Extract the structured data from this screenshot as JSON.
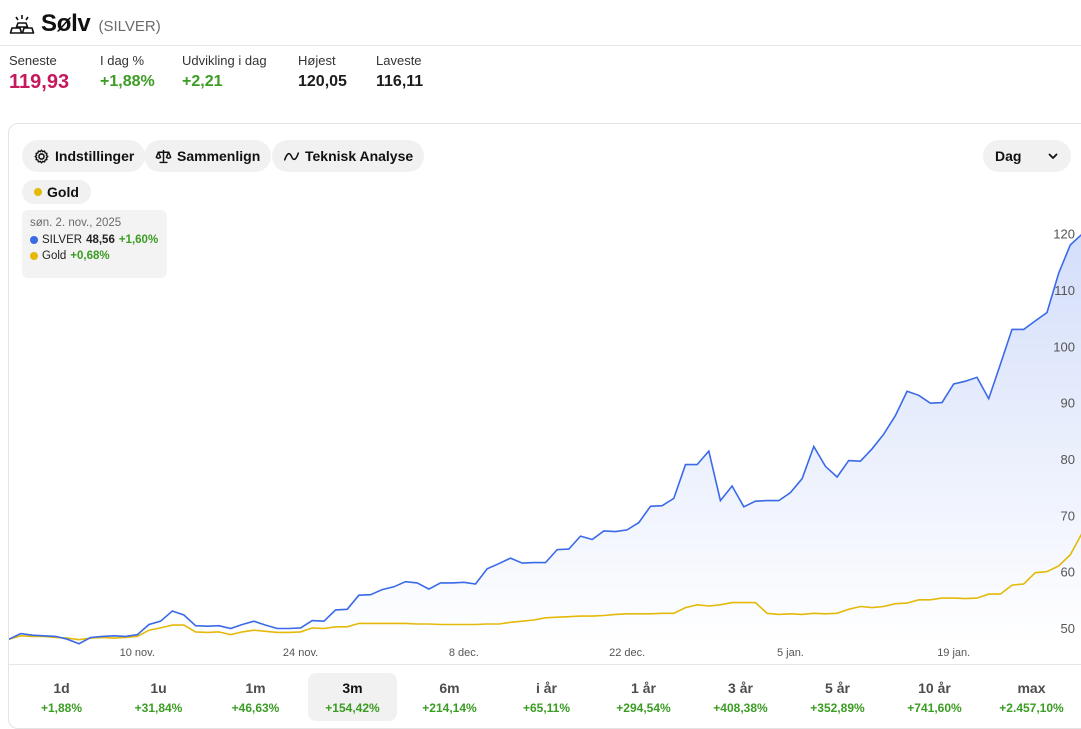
{
  "header": {
    "title": "Sølv",
    "ticker": "(SILVER)",
    "logo_icon": "gold-bars-icon"
  },
  "stats": [
    {
      "label": "Seneste",
      "value": "119,93",
      "style": "big"
    },
    {
      "label": "I dag %",
      "value": "+1,88%",
      "style": "pos"
    },
    {
      "label": "Udvikling i dag",
      "value": "+2,21",
      "style": "pos"
    },
    {
      "label": "Højest",
      "value": "120,05",
      "style": ""
    },
    {
      "label": "Laveste",
      "value": "116,11",
      "style": ""
    }
  ],
  "toolbar": {
    "settings_label": "Indstillinger",
    "compare_label": "Sammenlign",
    "technical_label": "Teknisk Analyse",
    "interval_value": "Dag",
    "compare_chip_label": "Gold"
  },
  "tooltip": {
    "date": "søn. 2. nov., 2025",
    "series": [
      {
        "name": "SILVER",
        "value": "48,56",
        "change": "+1,60%",
        "color": "#3a6ae8"
      },
      {
        "name": "Gold",
        "value": "",
        "change": "+0,68%",
        "color": "#e4b909"
      }
    ]
  },
  "chart_data": {
    "type": "line",
    "x_labels": [
      "10 nov.",
      "24 nov.",
      "8 dec.",
      "22 dec.",
      "5 jan.",
      "19 jan."
    ],
    "x_label_index": [
      11,
      25,
      39,
      53,
      67,
      81
    ],
    "ylim": [
      47.5,
      121
    ],
    "y_ticks": [
      50,
      60,
      70,
      80,
      90,
      100,
      110,
      120
    ],
    "grid": false,
    "colors": {
      "silver": "#3a6ae8",
      "gold": "#e4b909"
    },
    "series": [
      {
        "name": "SILVER",
        "values": [
          48.0,
          49.0,
          48.7,
          48.6,
          48.5,
          48.0,
          47.2,
          48.3,
          48.5,
          48.6,
          48.5,
          48.8,
          50.6,
          51.2,
          53.0,
          52.3,
          50.4,
          50.3,
          50.4,
          49.9,
          50.6,
          51.2,
          50.5,
          49.9,
          49.9,
          50.0,
          51.3,
          51.2,
          53.2,
          53.3,
          55.8,
          55.9,
          56.8,
          57.3,
          58.2,
          58.0,
          56.9,
          58.0,
          58.0,
          58.1,
          57.8,
          60.5,
          61.4,
          62.4,
          61.5,
          61.6,
          61.6,
          63.9,
          64.0,
          66.3,
          65.7,
          67.2,
          67.1,
          67.4,
          68.7,
          71.6,
          71.7,
          73.0,
          79.0,
          79.0,
          81.4,
          72.6,
          75.2,
          71.5,
          72.5,
          72.6,
          72.6,
          74.0,
          76.5,
          82.2,
          78.7,
          76.8,
          79.7,
          79.6,
          81.8,
          84.4,
          87.7,
          92.0,
          91.3,
          89.9,
          90.0,
          93.3,
          93.8,
          94.5,
          90.7,
          96.8,
          103.0,
          103.0,
          104.5,
          106.0,
          113.0,
          118.0,
          119.9
        ]
      },
      {
        "name": "Gold",
        "values": [
          48.0,
          48.6,
          48.5,
          48.5,
          48.3,
          48.2,
          47.9,
          48.2,
          48.3,
          48.2,
          48.3,
          48.5,
          49.6,
          50.0,
          50.5,
          50.5,
          49.3,
          49.2,
          49.3,
          48.8,
          49.3,
          49.6,
          49.4,
          49.2,
          49.2,
          49.3,
          50.0,
          49.9,
          50.2,
          50.2,
          50.8,
          50.8,
          50.8,
          50.8,
          50.8,
          50.7,
          50.7,
          50.6,
          50.6,
          50.6,
          50.6,
          50.7,
          50.7,
          51.0,
          51.2,
          51.4,
          51.8,
          51.9,
          52.0,
          52.1,
          52.1,
          52.2,
          52.4,
          52.5,
          52.5,
          52.5,
          52.6,
          52.6,
          53.6,
          54.1,
          53.9,
          54.1,
          54.5,
          54.5,
          54.5,
          52.6,
          52.4,
          52.5,
          52.4,
          52.6,
          52.5,
          52.6,
          53.3,
          53.8,
          53.6,
          53.8,
          54.3,
          54.4,
          55.0,
          55.0,
          55.3,
          55.3,
          55.2,
          55.3,
          56.0,
          56.0,
          57.6,
          57.8,
          59.8,
          60.0,
          61.0,
          63.0,
          66.8
        ]
      }
    ]
  },
  "periods": [
    {
      "label": "1d",
      "change": "+1,88%"
    },
    {
      "label": "1u",
      "change": "+31,84%"
    },
    {
      "label": "1m",
      "change": "+46,63%"
    },
    {
      "label": "3m",
      "change": "+154,42%",
      "active": true
    },
    {
      "label": "6m",
      "change": "+214,14%"
    },
    {
      "label": "i år",
      "change": "+65,11%"
    },
    {
      "label": "1 år",
      "change": "+294,54%"
    },
    {
      "label": "3 år",
      "change": "+408,38%"
    },
    {
      "label": "5 år",
      "change": "+352,89%"
    },
    {
      "label": "10 år",
      "change": "+741,60%"
    },
    {
      "label": "max",
      "change": "+2.457,10%"
    }
  ]
}
